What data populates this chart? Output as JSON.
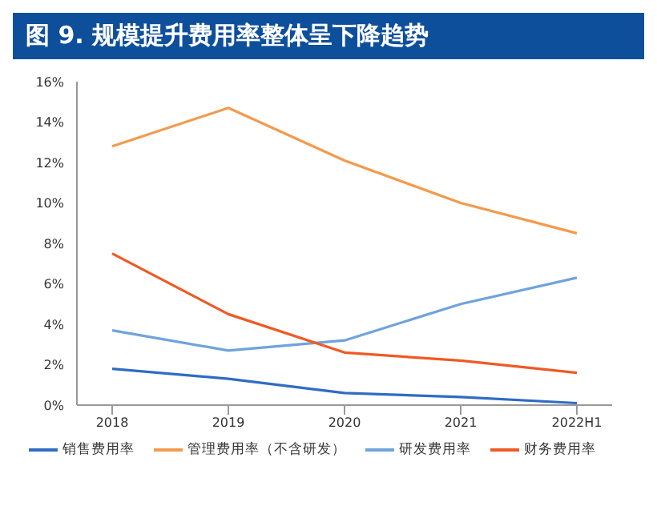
{
  "chart_data": {
    "type": "line",
    "title": "图 9. 规模提升费用率整体呈下降趋势",
    "categories": [
      "2018",
      "2019",
      "2020",
      "2021",
      "2022H1"
    ],
    "series": [
      {
        "name": "销售费用率",
        "color": "#2f6cc4",
        "values": [
          1.8,
          1.3,
          0.6,
          0.4,
          0.1
        ]
      },
      {
        "name": "管理费用率（不含研发）",
        "color": "#f39a4c",
        "values": [
          12.8,
          14.7,
          12.1,
          10.0,
          8.5
        ]
      },
      {
        "name": "研发费用率",
        "color": "#6fa3dc",
        "values": [
          3.7,
          2.7,
          3.2,
          5.0,
          6.3
        ]
      },
      {
        "name": "财务费用率",
        "color": "#ee5a24",
        "values": [
          7.5,
          4.5,
          2.6,
          2.2,
          1.6
        ]
      }
    ],
    "ylim": [
      0,
      16
    ],
    "yticks": [
      {
        "value": 0,
        "label": "0%"
      },
      {
        "value": 2,
        "label": "2%"
      },
      {
        "value": 4,
        "label": "4%"
      },
      {
        "value": 6,
        "label": "6%"
      },
      {
        "value": 8,
        "label": "8%"
      },
      {
        "value": 10,
        "label": "10%"
      },
      {
        "value": 12,
        "label": "12%"
      },
      {
        "value": 14,
        "label": "14%"
      },
      {
        "value": 16,
        "label": "16%"
      }
    ],
    "grid": false,
    "legend": "bottom",
    "marker": "none",
    "line_style": "solid"
  }
}
